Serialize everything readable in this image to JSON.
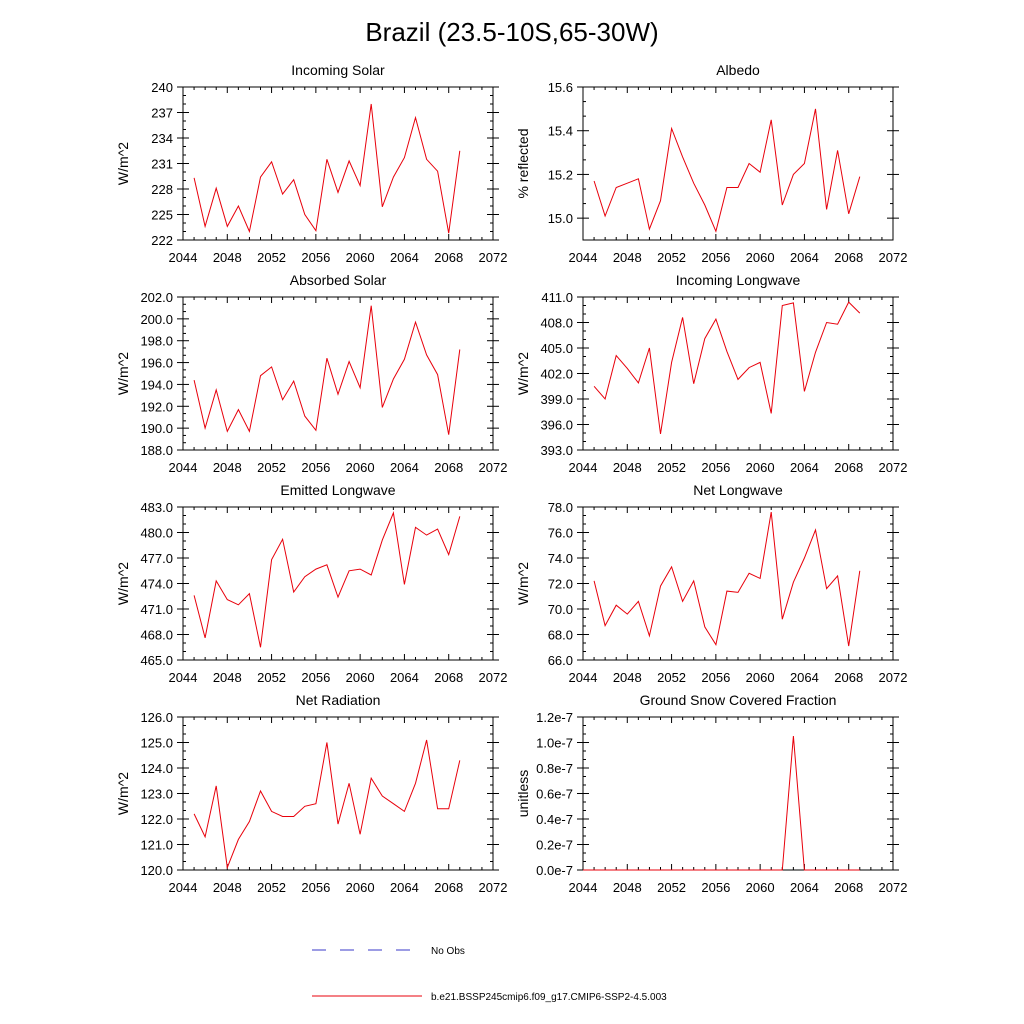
{
  "figure": {
    "title": "Brazil (23.5-10S,65-30W)",
    "line_color": "#e8000b",
    "obs_color": "#3a3ac8"
  },
  "legend": {
    "items": [
      {
        "label": "No Obs",
        "style": "dashed",
        "color": "#3a3ac8"
      },
      {
        "label": "b.e21.BSSP245cmip6.f09_g17.CMIP6-SSP2-4.5.003",
        "style": "solid",
        "color": "#e8000b"
      }
    ]
  },
  "chart_data": [
    {
      "type": "line",
      "title": "Incoming Solar",
      "xlabel": "",
      "ylabel": "W/m^2",
      "xlim": [
        2044,
        2072
      ],
      "ylim": [
        222,
        240
      ],
      "xticks": [
        2044,
        2048,
        2052,
        2056,
        2060,
        2064,
        2068,
        2072
      ],
      "yticks": [
        222,
        225,
        228,
        231,
        234,
        237,
        240
      ],
      "ytick_labels": [
        "222",
        "225",
        "228",
        "231",
        "234",
        "237",
        "240"
      ],
      "x": [
        2045,
        2046,
        2047,
        2048,
        2049,
        2050,
        2051,
        2052,
        2053,
        2054,
        2055,
        2056,
        2057,
        2058,
        2059,
        2060,
        2061,
        2062,
        2063,
        2064,
        2065,
        2066,
        2067,
        2068,
        2069
      ],
      "series": [
        {
          "name": "b.e21.BSSP245cmip6.f09_g17.CMIP6-SSP2-4.5.003",
          "values": [
            229.3,
            223.6,
            228.1,
            223.6,
            226.0,
            223.0,
            229.4,
            231.2,
            227.4,
            229.1,
            225.0,
            223.1,
            231.5,
            227.6,
            231.3,
            228.4,
            238.0,
            225.9,
            229.4,
            231.7,
            236.4,
            231.5,
            230.1,
            222.8,
            232.5
          ]
        }
      ]
    },
    {
      "type": "line",
      "title": "Albedo",
      "xlabel": "",
      "ylabel": "% reflected",
      "xlim": [
        2044,
        2072
      ],
      "ylim": [
        14.9,
        15.6
      ],
      "xticks": [
        2044,
        2048,
        2052,
        2056,
        2060,
        2064,
        2068,
        2072
      ],
      "yticks": [
        15.0,
        15.2,
        15.4,
        15.6
      ],
      "ytick_labels": [
        "15.0",
        "15.2",
        "15.4",
        "15.6"
      ],
      "x": [
        2045,
        2046,
        2047,
        2048,
        2049,
        2050,
        2051,
        2052,
        2053,
        2054,
        2055,
        2056,
        2057,
        2058,
        2059,
        2060,
        2061,
        2062,
        2063,
        2064,
        2065,
        2066,
        2067,
        2068,
        2069
      ],
      "series": [
        {
          "name": "b.e21.BSSP245cmip6.f09_g17.CMIP6-SSP2-4.5.003",
          "values": [
            15.17,
            15.01,
            15.14,
            15.16,
            15.18,
            14.95,
            15.08,
            15.41,
            15.28,
            15.16,
            15.06,
            14.94,
            15.14,
            15.14,
            15.25,
            15.21,
            15.45,
            15.06,
            15.2,
            15.25,
            15.5,
            15.04,
            15.31,
            15.02,
            15.19
          ]
        }
      ]
    },
    {
      "type": "line",
      "title": "Absorbed Solar",
      "xlabel": "",
      "ylabel": "W/m^2",
      "xlim": [
        2044,
        2072
      ],
      "ylim": [
        188.0,
        202.0
      ],
      "xticks": [
        2044,
        2048,
        2052,
        2056,
        2060,
        2064,
        2068,
        2072
      ],
      "yticks": [
        188.0,
        190.0,
        192.0,
        194.0,
        196.0,
        198.0,
        200.0,
        202.0
      ],
      "ytick_labels": [
        "188.0",
        "190.0",
        "192.0",
        "194.0",
        "196.0",
        "198.0",
        "200.0",
        "202.0"
      ],
      "x": [
        2045,
        2046,
        2047,
        2048,
        2049,
        2050,
        2051,
        2052,
        2053,
        2054,
        2055,
        2056,
        2057,
        2058,
        2059,
        2060,
        2061,
        2062,
        2063,
        2064,
        2065,
        2066,
        2067,
        2068,
        2069
      ],
      "series": [
        {
          "name": "b.e21.BSSP245cmip6.f09_g17.CMIP6-SSP2-4.5.003",
          "values": [
            194.4,
            190.0,
            193.5,
            189.7,
            191.7,
            189.7,
            194.8,
            195.6,
            192.6,
            194.3,
            191.1,
            189.8,
            196.4,
            193.1,
            196.1,
            193.7,
            201.2,
            191.9,
            194.5,
            196.3,
            199.7,
            196.7,
            194.9,
            189.4,
            197.2
          ]
        }
      ]
    },
    {
      "type": "line",
      "title": "Incoming Longwave",
      "xlabel": "",
      "ylabel": "W/m^2",
      "xlim": [
        2044,
        2072
      ],
      "ylim": [
        393.0,
        411.0
      ],
      "xticks": [
        2044,
        2048,
        2052,
        2056,
        2060,
        2064,
        2068,
        2072
      ],
      "yticks": [
        393.0,
        396.0,
        399.0,
        402.0,
        405.0,
        408.0,
        411.0
      ],
      "ytick_labels": [
        "393.0",
        "396.0",
        "399.0",
        "402.0",
        "405.0",
        "408.0",
        "411.0"
      ],
      "x": [
        2045,
        2046,
        2047,
        2048,
        2049,
        2050,
        2051,
        2052,
        2053,
        2054,
        2055,
        2056,
        2057,
        2058,
        2059,
        2060,
        2061,
        2062,
        2063,
        2064,
        2065,
        2066,
        2067,
        2068,
        2069
      ],
      "series": [
        {
          "name": "b.e21.BSSP245cmip6.f09_g17.CMIP6-SSP2-4.5.003",
          "values": [
            400.5,
            399.0,
            404.1,
            402.6,
            400.9,
            405.0,
            394.9,
            403.3,
            408.6,
            400.8,
            406.1,
            408.4,
            404.6,
            401.3,
            402.7,
            403.3,
            397.3,
            410.0,
            410.3,
            399.9,
            404.5,
            408.0,
            407.8,
            410.4,
            409.1
          ]
        }
      ]
    },
    {
      "type": "line",
      "title": "Emitted Longwave",
      "xlabel": "",
      "ylabel": "W/m^2",
      "xlim": [
        2044,
        2072
      ],
      "ylim": [
        465.0,
        483.0
      ],
      "xticks": [
        2044,
        2048,
        2052,
        2056,
        2060,
        2064,
        2068,
        2072
      ],
      "yticks": [
        465.0,
        468.0,
        471.0,
        474.0,
        477.0,
        480.0,
        483.0
      ],
      "ytick_labels": [
        "465.0",
        "468.0",
        "471.0",
        "474.0",
        "477.0",
        "480.0",
        "483.0"
      ],
      "x": [
        2045,
        2046,
        2047,
        2048,
        2049,
        2050,
        2051,
        2052,
        2053,
        2054,
        2055,
        2056,
        2057,
        2058,
        2059,
        2060,
        2061,
        2062,
        2063,
        2064,
        2065,
        2066,
        2067,
        2068,
        2069
      ],
      "series": [
        {
          "name": "b.e21.BSSP245cmip6.f09_g17.CMIP6-SSP2-4.5.003",
          "values": [
            472.6,
            467.6,
            474.3,
            472.1,
            471.5,
            472.8,
            466.5,
            476.8,
            479.2,
            473.0,
            474.8,
            475.7,
            476.2,
            472.4,
            475.5,
            475.7,
            475.0,
            479.1,
            482.3,
            473.9,
            480.6,
            479.7,
            480.4,
            477.4,
            481.9
          ]
        }
      ]
    },
    {
      "type": "line",
      "title": "Net Longwave",
      "xlabel": "",
      "ylabel": "W/m^2",
      "xlim": [
        2044,
        2072
      ],
      "ylim": [
        66.0,
        78.0
      ],
      "xticks": [
        2044,
        2048,
        2052,
        2056,
        2060,
        2064,
        2068,
        2072
      ],
      "yticks": [
        66.0,
        68.0,
        70.0,
        72.0,
        74.0,
        76.0,
        78.0
      ],
      "ytick_labels": [
        "66.0",
        "68.0",
        "70.0",
        "72.0",
        "74.0",
        "76.0",
        "78.0"
      ],
      "x": [
        2045,
        2046,
        2047,
        2048,
        2049,
        2050,
        2051,
        2052,
        2053,
        2054,
        2055,
        2056,
        2057,
        2058,
        2059,
        2060,
        2061,
        2062,
        2063,
        2064,
        2065,
        2066,
        2067,
        2068,
        2069
      ],
      "series": [
        {
          "name": "b.e21.BSSP245cmip6.f09_g17.CMIP6-SSP2-4.5.003",
          "values": [
            72.2,
            68.7,
            70.3,
            69.6,
            70.6,
            67.9,
            71.8,
            73.3,
            70.6,
            72.2,
            68.6,
            67.2,
            71.4,
            71.3,
            72.8,
            72.4,
            77.6,
            69.2,
            72.1,
            74.0,
            76.2,
            71.6,
            72.6,
            67.1,
            73.0
          ]
        }
      ]
    },
    {
      "type": "line",
      "title": "Net Radiation",
      "xlabel": "",
      "ylabel": "W/m^2",
      "xlim": [
        2044,
        2072
      ],
      "ylim": [
        120.0,
        126.0
      ],
      "xticks": [
        2044,
        2048,
        2052,
        2056,
        2060,
        2064,
        2068,
        2072
      ],
      "yticks": [
        120.0,
        121.0,
        122.0,
        123.0,
        124.0,
        125.0,
        126.0
      ],
      "ytick_labels": [
        "120.0",
        "121.0",
        "122.0",
        "123.0",
        "124.0",
        "125.0",
        "126.0"
      ],
      "x": [
        2045,
        2046,
        2047,
        2048,
        2049,
        2050,
        2051,
        2052,
        2053,
        2054,
        2055,
        2056,
        2057,
        2058,
        2059,
        2060,
        2061,
        2062,
        2063,
        2064,
        2065,
        2066,
        2067,
        2068,
        2069
      ],
      "series": [
        {
          "name": "b.e21.BSSP245cmip6.f09_g17.CMIP6-SSP2-4.5.003",
          "values": [
            122.2,
            121.3,
            123.3,
            120.1,
            121.2,
            121.9,
            123.1,
            122.3,
            122.1,
            122.1,
            122.5,
            122.6,
            125.0,
            121.8,
            123.4,
            121.4,
            123.6,
            122.9,
            122.6,
            122.3,
            123.4,
            125.1,
            122.4,
            122.4,
            124.3
          ]
        }
      ]
    },
    {
      "type": "line",
      "title": "Ground Snow Covered Fraction",
      "xlabel": "",
      "ylabel": "unitless",
      "xlim": [
        2044,
        2072
      ],
      "ylim": [
        0.0,
        1.2e-07
      ],
      "xticks": [
        2044,
        2048,
        2052,
        2056,
        2060,
        2064,
        2068,
        2072
      ],
      "yticks": [
        0.0,
        2e-08,
        4e-08,
        6e-08,
        8e-08,
        1e-07,
        1.2e-07
      ],
      "ytick_labels": [
        "0.0e-7",
        "0.2e-7",
        "0.4e-7",
        "0.6e-7",
        "0.8e-7",
        "1.0e-7",
        "1.2e-7"
      ],
      "x": [
        2044,
        2045,
        2046,
        2047,
        2048,
        2049,
        2050,
        2051,
        2052,
        2053,
        2054,
        2055,
        2056,
        2057,
        2058,
        2059,
        2060,
        2061,
        2062,
        2063,
        2064,
        2065,
        2066,
        2067,
        2068,
        2069
      ],
      "series": [
        {
          "name": "b.e21.BSSP245cmip6.f09_g17.CMIP6-SSP2-4.5.003",
          "values": [
            0,
            0,
            0,
            0,
            0,
            0,
            0,
            0,
            0,
            0,
            0,
            0,
            0,
            0,
            0,
            0,
            0,
            0,
            0,
            1.05e-07,
            0,
            0,
            0,
            0,
            0,
            0
          ]
        }
      ]
    }
  ]
}
